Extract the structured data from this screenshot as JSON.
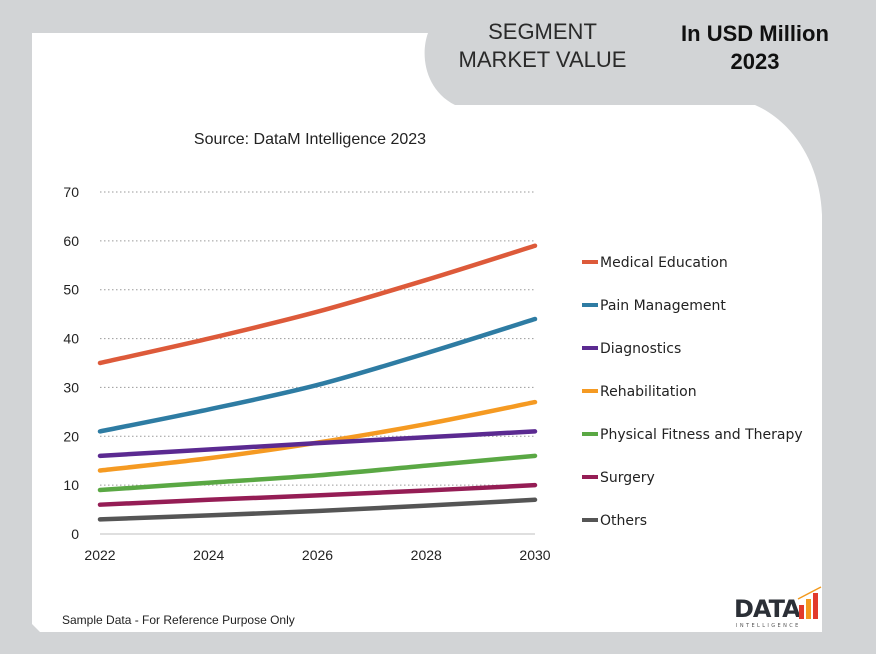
{
  "header": {
    "segment_line1": "SEGMENT",
    "segment_line2": "MARKET VALUE",
    "unit_line1": "In USD Million",
    "unit_line2": "2023"
  },
  "source": "Source: DataM Intelligence 2023",
  "footnote": "Sample Data - For Reference Purpose Only",
  "logo": {
    "word": "DATA",
    "tagline": "INTELLIGENCE"
  },
  "chart_data": {
    "type": "line",
    "title": "",
    "xlabel": "",
    "ylabel": "",
    "x": [
      2022,
      2024,
      2026,
      2028,
      2030
    ],
    "xlim": [
      2022,
      2030
    ],
    "ylim": [
      0,
      70
    ],
    "yticks": [
      0,
      10,
      20,
      30,
      40,
      50,
      60,
      70
    ],
    "grid": "horizontal dotted",
    "legend": "right",
    "series": [
      {
        "name": "Medical Education",
        "color": "#dd5a3a",
        "values": [
          35,
          40,
          45.5,
          52,
          59
        ]
      },
      {
        "name": "Pain Management",
        "color": "#2e7ca3",
        "values": [
          21,
          25.5,
          30.5,
          37,
          44
        ]
      },
      {
        "name": "Diagnostics",
        "color": "#5b2a91",
        "values": [
          16,
          17.3,
          18.6,
          19.8,
          21
        ]
      },
      {
        "name": "Rehabilitation",
        "color": "#f59a22",
        "values": [
          13,
          15.5,
          18.7,
          22.5,
          27
        ]
      },
      {
        "name": "Physical Fitness and Therapy",
        "color": "#5aa844",
        "values": [
          9,
          10.5,
          12,
          14,
          16
        ]
      },
      {
        "name": "Surgery",
        "color": "#951d55",
        "values": [
          6,
          7,
          7.9,
          8.9,
          10
        ]
      },
      {
        "name": "Others",
        "color": "#555555",
        "values": [
          3,
          3.8,
          4.7,
          5.8,
          7
        ]
      }
    ]
  }
}
